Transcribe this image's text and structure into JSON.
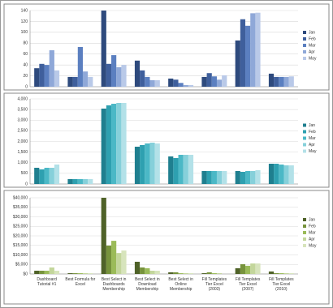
{
  "chart_data": [
    {
      "type": "bar",
      "series": [
        {
          "name": "Jan",
          "color": "#2e4a7d",
          "values": [
            34,
            18,
            140,
            48,
            15,
            18,
            85,
            24
          ]
        },
        {
          "name": "Feb",
          "color": "#3f5f9c",
          "values": [
            42,
            18,
            42,
            30,
            13,
            25,
            124,
            18
          ]
        },
        {
          "name": "Mar",
          "color": "#5b7fc0",
          "values": [
            40,
            73,
            58,
            18,
            7,
            19,
            112,
            18
          ]
        },
        {
          "name": "Apr",
          "color": "#8fa8d8",
          "values": [
            67,
            28,
            36,
            12,
            3,
            13,
            135,
            18
          ]
        },
        {
          "name": "May",
          "color": "#b9c9e8",
          "values": [
            30,
            18,
            40,
            12,
            3,
            21,
            136,
            19
          ]
        }
      ],
      "ylim": [
        0,
        140
      ],
      "yticks": [
        0,
        20,
        40,
        60,
        80,
        100,
        120,
        140
      ],
      "grid": true,
      "legend": "right"
    },
    {
      "type": "bar",
      "series": [
        {
          "name": "Jan",
          "color": "#1f7f8f",
          "values": [
            762,
            229,
            3543,
            1752,
            1295,
            610,
            610,
            952
          ]
        },
        {
          "name": "Feb",
          "color": "#2ea0b0",
          "values": [
            686,
            229,
            3695,
            1829,
            1219,
            610,
            571,
            952
          ]
        },
        {
          "name": "Mar",
          "color": "#4bb8c6",
          "values": [
            762,
            229,
            3771,
            1905,
            1371,
            610,
            610,
            914
          ]
        },
        {
          "name": "Apr",
          "color": "#86d0da",
          "values": [
            762,
            229,
            3810,
            1943,
            1371,
            610,
            610,
            876
          ]
        },
        {
          "name": "May",
          "color": "#b3e1e8",
          "values": [
            914,
            229,
            3810,
            1905,
            1371,
            610,
            648,
            876
          ]
        }
      ],
      "ylim": [
        0,
        4000
      ],
      "yticks": [
        0,
        500,
        {
          "value": 1000,
          "label": "1,000"
        },
        {
          "value": 1500,
          "label": "1,500"
        },
        {
          "value": 2000,
          "label": "2,000"
        },
        {
          "value": 2500,
          "label": "2,500"
        },
        {
          "value": 3000,
          "label": "3,000"
        },
        {
          "value": 3500,
          "label": "3,500"
        },
        {
          "value": 4000,
          "label": "4,000"
        }
      ],
      "grid": true,
      "legend": "right"
    },
    {
      "type": "bar",
      "categories": [
        "Dashboard Tutorial #1",
        "Best Formula for Excel",
        "Best Select in Dashboards Membership",
        "Best Select in Download Membership",
        "Best Select in Online Membership",
        "Fill Templates Tier Excel (2003)",
        "Fill Templates Tier Excel (2007)",
        "Fill Templates Tier Excel (2010)"
      ],
      "series": [
        {
          "name": "Jan",
          "color": "#4f6228",
          "values": [
            1700,
            400,
            40000,
            6400,
            850,
            400,
            3000,
            1300
          ]
        },
        {
          "name": "Feb",
          "color": "#77933c",
          "values": [
            1700,
            400,
            14900,
            3400,
            850,
            850,
            5100,
            400
          ]
        },
        {
          "name": "Mar",
          "color": "#9bbb59",
          "values": [
            1700,
            400,
            17400,
            3000,
            400,
            400,
            4300,
            400
          ]
        },
        {
          "name": "Apr",
          "color": "#c3d69b",
          "values": [
            3400,
            400,
            11000,
            1700,
            400,
            400,
            5500,
            400
          ]
        },
        {
          "name": "May",
          "color": "#d7e4bc",
          "values": [
            1700,
            400,
            12300,
            1700,
            400,
            0,
            5500,
            400
          ]
        }
      ],
      "ylim": [
        0,
        40000
      ],
      "yticks": [
        {
          "value": 0,
          "label": "$0"
        },
        {
          "value": 5000,
          "label": "$5,000"
        },
        {
          "value": 10000,
          "label": "$10,000"
        },
        {
          "value": 15000,
          "label": "$15,000"
        },
        {
          "value": 20000,
          "label": "$20,000"
        },
        {
          "value": 25000,
          "label": "$25,000"
        },
        {
          "value": 30000,
          "label": "$30,000"
        },
        {
          "value": 35000,
          "label": "$35,000"
        },
        {
          "value": 40000,
          "label": "$40,000"
        }
      ],
      "grid": true,
      "legend": "right"
    }
  ]
}
